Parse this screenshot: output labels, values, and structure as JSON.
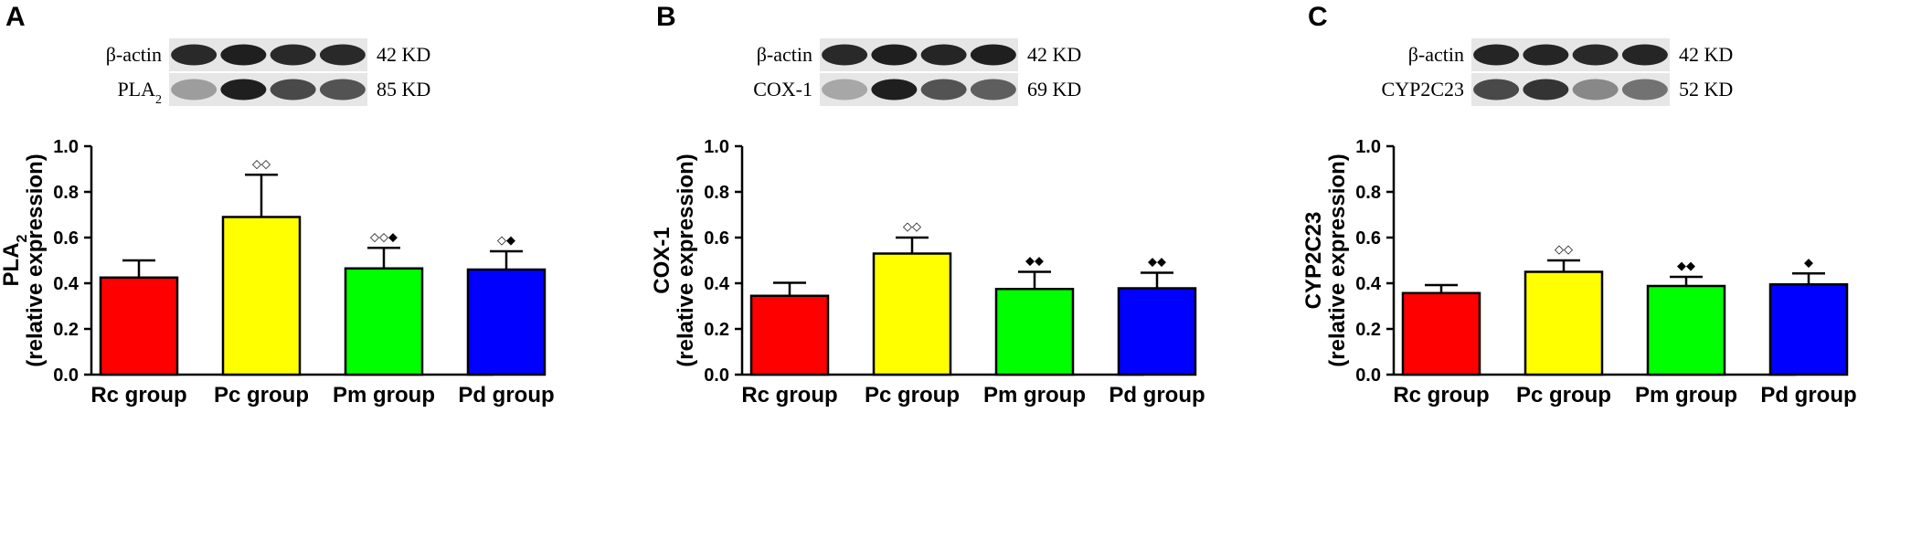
{
  "colors": {
    "Rc": "#ff0000",
    "Pc": "#ffff00",
    "Pm": "#00ff00",
    "Pd": "#0000ff",
    "band": "#1a1a1a",
    "blot_bg": "#e6e6e6"
  },
  "chart_data": [
    {
      "type": "bar",
      "panel": "A",
      "categories": [
        "Rc group",
        "Pc group",
        "Pm group",
        "Pd group"
      ],
      "values": [
        0.425,
        0.69,
        0.465,
        0.46
      ],
      "errors": [
        0.075,
        0.185,
        0.09,
        0.08
      ],
      "significance": [
        "",
        "◇◇",
        "◇◇◆",
        "◇◆"
      ],
      "ylim": [
        0,
        1.0
      ],
      "yticks": [
        "0.0",
        "0.2",
        "0.4",
        "0.6",
        "0.8",
        "1.0"
      ],
      "ylabel_main": "PLA",
      "ylabel_sub": "2",
      "ylabel_line2": "(relative expression)",
      "blot": {
        "row1": {
          "name": "β-actin",
          "sub": "",
          "kd": "42 KD",
          "intensities": [
            0.9,
            0.95,
            0.9,
            0.9
          ]
        },
        "row2": {
          "name": "PLA",
          "sub": "2",
          "kd": "85 KD",
          "intensities": [
            0.35,
            0.95,
            0.75,
            0.7
          ]
        }
      }
    },
    {
      "type": "bar",
      "panel": "B",
      "categories": [
        "Rc group",
        "Pc group",
        "Pm group",
        "Pd group"
      ],
      "values": [
        0.345,
        0.53,
        0.375,
        0.378
      ],
      "errors": [
        0.057,
        0.07,
        0.075,
        0.068
      ],
      "significance": [
        "",
        "◇◇",
        "◆◆",
        "◆◆"
      ],
      "ylim": [
        0,
        1.0
      ],
      "yticks": [
        "0.0",
        "0.2",
        "0.4",
        "0.6",
        "0.8",
        "1.0"
      ],
      "ylabel_main": "COX-1",
      "ylabel_sub": "",
      "ylabel_line2": "(relative expression)",
      "blot": {
        "row1": {
          "name": "β-actin",
          "sub": "",
          "kd": "42 KD",
          "intensities": [
            0.9,
            0.95,
            0.92,
            0.95
          ]
        },
        "row2": {
          "name": "COX-1",
          "sub": "",
          "kd": "69 KD",
          "intensities": [
            0.3,
            0.95,
            0.7,
            0.65
          ]
        }
      }
    },
    {
      "type": "bar",
      "panel": "C",
      "categories": [
        "Rc group",
        "Pc group",
        "Pm group",
        "Pd group"
      ],
      "values": [
        0.357,
        0.45,
        0.388,
        0.395
      ],
      "errors": [
        0.035,
        0.05,
        0.04,
        0.048
      ],
      "significance": [
        "",
        "◇◇",
        "◆◆",
        "◆"
      ],
      "ylim": [
        0,
        1.0
      ],
      "yticks": [
        "0.0",
        "0.2",
        "0.4",
        "0.6",
        "0.8",
        "1.0"
      ],
      "ylabel_main": "CYP2C23",
      "ylabel_sub": "",
      "ylabel_line2": "(relative expression)",
      "blot": {
        "row1": {
          "name": "β-actin",
          "sub": "",
          "kd": "42 KD",
          "intensities": [
            0.92,
            0.92,
            0.9,
            0.92
          ]
        },
        "row2": {
          "name": "CYP2C23",
          "sub": "",
          "kd": "52 KD",
          "intensities": [
            0.75,
            0.85,
            0.45,
            0.55
          ]
        }
      }
    }
  ]
}
